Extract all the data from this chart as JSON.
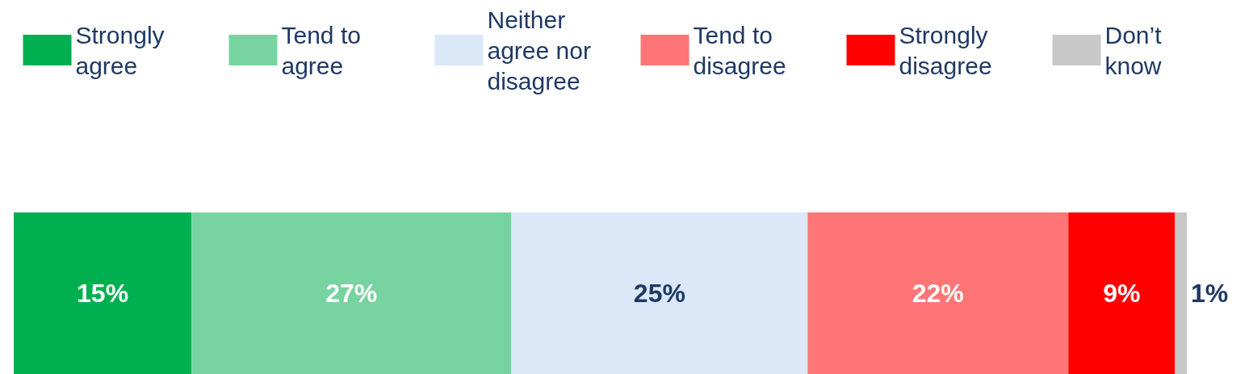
{
  "chart_data": {
    "type": "bar",
    "orientation": "horizontal",
    "stacked": true,
    "categories": [
      null
    ],
    "legend": "top",
    "series": [
      {
        "name": "Strongly agree",
        "color": "#00b050",
        "values": [
          15
        ],
        "value_labels": [
          "15%"
        ]
      },
      {
        "name": "Tend to agree",
        "color": "#77d4a0",
        "values": [
          27
        ],
        "value_labels": [
          "27%"
        ]
      },
      {
        "name": "Neither agree nor disagree",
        "color": "#dae8f7",
        "values": [
          25
        ],
        "value_labels": [
          "25%"
        ]
      },
      {
        "name": "Tend to disagree",
        "color": "#ff7575",
        "values": [
          22
        ],
        "value_labels": [
          "22%"
        ]
      },
      {
        "name": "Strongly disagree",
        "color": "#ff0000",
        "values": [
          9
        ],
        "value_labels": [
          "9%"
        ]
      },
      {
        "name": "Don’t know",
        "color": "#c8c8c8",
        "values": [
          1
        ],
        "value_labels": [
          "1%"
        ]
      }
    ]
  }
}
